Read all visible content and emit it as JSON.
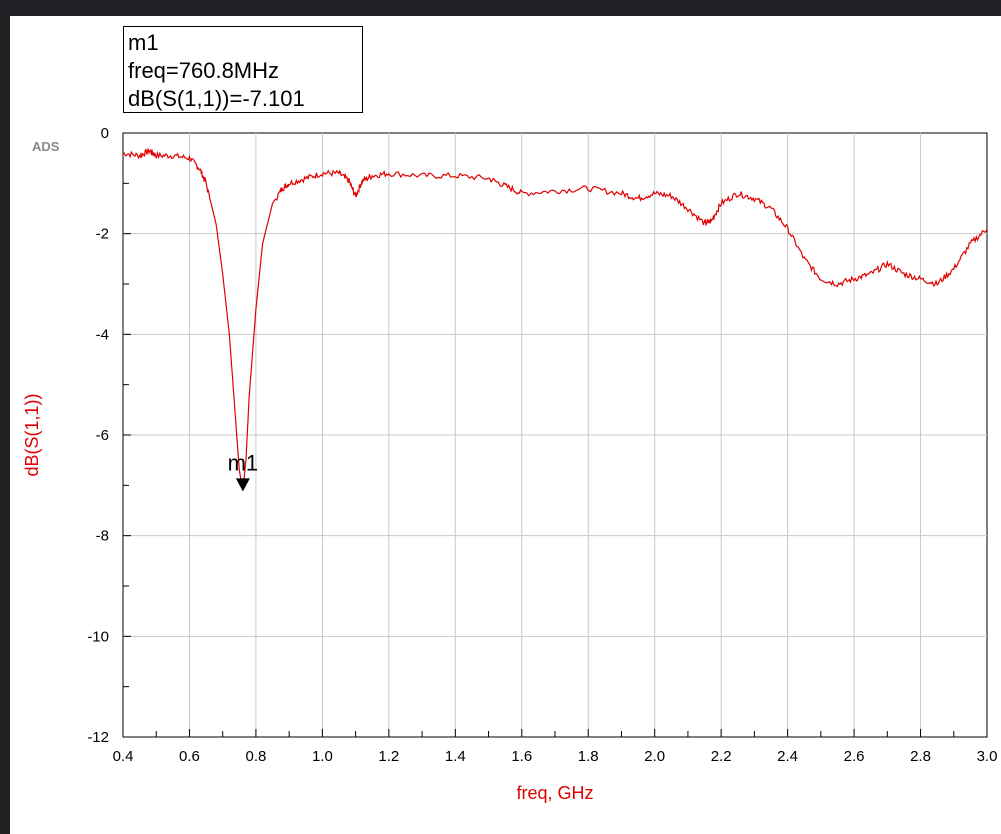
{
  "chart_data": {
    "type": "line",
    "xlabel": "freq, GHz",
    "ylabel": "dB(S(1,1))",
    "xlim": [
      0.4,
      3.0
    ],
    "ylim": [
      -12,
      0
    ],
    "x_ticks": [
      "0.4",
      "0.6",
      "0.8",
      "1.0",
      "1.2",
      "1.4",
      "1.6",
      "1.8",
      "2.0",
      "2.2",
      "2.4",
      "2.6",
      "2.8",
      "3.0"
    ],
    "y_ticks": [
      "0",
      "-2",
      "-4",
      "-6",
      "-8",
      "-10",
      "-12"
    ],
    "x_tick_values": [
      0.4,
      0.6,
      0.8,
      1.0,
      1.2,
      1.4,
      1.6,
      1.8,
      2.0,
      2.2,
      2.4,
      2.6,
      2.8,
      3.0
    ],
    "y_tick_values": [
      0,
      -2,
      -4,
      -6,
      -8,
      -10,
      -12
    ],
    "grid": true,
    "line_color": "#e00000",
    "series": [
      {
        "x": [
          0.4,
          0.45,
          0.48,
          0.5,
          0.55,
          0.6,
          0.63,
          0.65,
          0.68,
          0.7,
          0.72,
          0.74,
          0.75,
          0.7608,
          0.77,
          0.78,
          0.8,
          0.82,
          0.85,
          0.88,
          0.9,
          0.95,
          1.0,
          1.05,
          1.08,
          1.1,
          1.12,
          1.15,
          1.2,
          1.3,
          1.4,
          1.5,
          1.55,
          1.6,
          1.7,
          1.8,
          1.9,
          1.95,
          2.0,
          2.05,
          2.1,
          2.15,
          2.17,
          2.2,
          2.25,
          2.3,
          2.35,
          2.4,
          2.45,
          2.5,
          2.55,
          2.6,
          2.65,
          2.7,
          2.75,
          2.8,
          2.85,
          2.9,
          2.95,
          3.0
        ],
        "y": [
          -0.4,
          -0.45,
          -0.35,
          -0.45,
          -0.45,
          -0.5,
          -0.7,
          -1.0,
          -1.8,
          -2.8,
          -4.0,
          -5.8,
          -6.7,
          -7.1,
          -6.5,
          -5.2,
          -3.5,
          -2.2,
          -1.4,
          -1.1,
          -1.0,
          -0.9,
          -0.8,
          -0.8,
          -0.95,
          -1.25,
          -0.95,
          -0.85,
          -0.8,
          -0.85,
          -0.85,
          -0.9,
          -1.05,
          -1.2,
          -1.15,
          -1.1,
          -1.2,
          -1.3,
          -1.2,
          -1.25,
          -1.5,
          -1.8,
          -1.75,
          -1.4,
          -1.2,
          -1.3,
          -1.5,
          -1.9,
          -2.5,
          -2.9,
          -3.0,
          -2.9,
          -2.8,
          -2.6,
          -2.8,
          -2.9,
          -3.0,
          -2.7,
          -2.2,
          -1.9
        ]
      }
    ],
    "marker": {
      "name": "m1",
      "x": 0.7608,
      "y": -7.101,
      "line1": "m1",
      "line2": "freq=760.8MHz",
      "line3": "dB(S(1,1))=-7.101"
    },
    "logo": "ADS"
  }
}
